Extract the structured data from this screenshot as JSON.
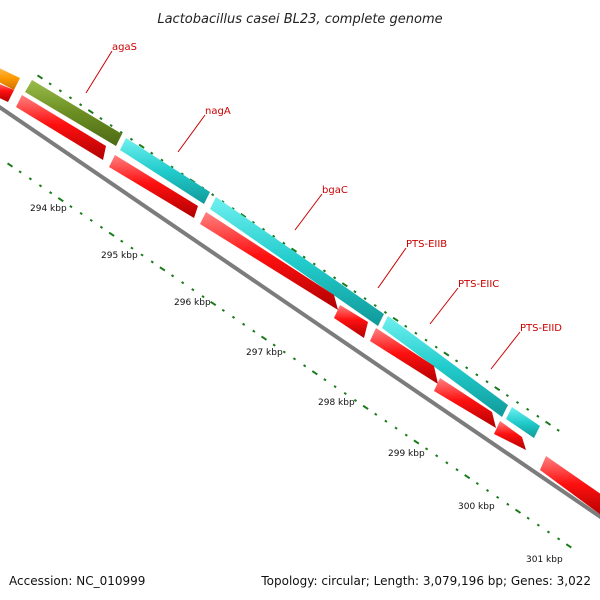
{
  "title": "Lactobacillus casei BL23, complete genome",
  "accession": "Accession: NC_010999",
  "summary": "Topology: circular; Length: 3,079,196 bp; Genes: 3,022",
  "colors": {
    "orange": "#ff9900",
    "olive": "#6b8e23",
    "cyan": "#22cccc",
    "red": "#ff0000",
    "backbone": "#808080",
    "tick": "#1a7a1a",
    "label": "#cc0000"
  },
  "gene_labels": [
    {
      "name": "agaS"
    },
    {
      "name": "nagA"
    },
    {
      "name": "bgaC"
    },
    {
      "name": "PTS-EIIB"
    },
    {
      "name": "PTS-EIIC"
    },
    {
      "name": "PTS-EIID"
    }
  ],
  "kbp_labels": [
    {
      "text": "294 kbp"
    },
    {
      "text": "295 kbp"
    },
    {
      "text": "296 kbp"
    },
    {
      "text": "297 kbp"
    },
    {
      "text": "298 kbp"
    },
    {
      "text": "299 kbp"
    },
    {
      "text": "300 kbp"
    },
    {
      "text": "301 kbp"
    }
  ]
}
